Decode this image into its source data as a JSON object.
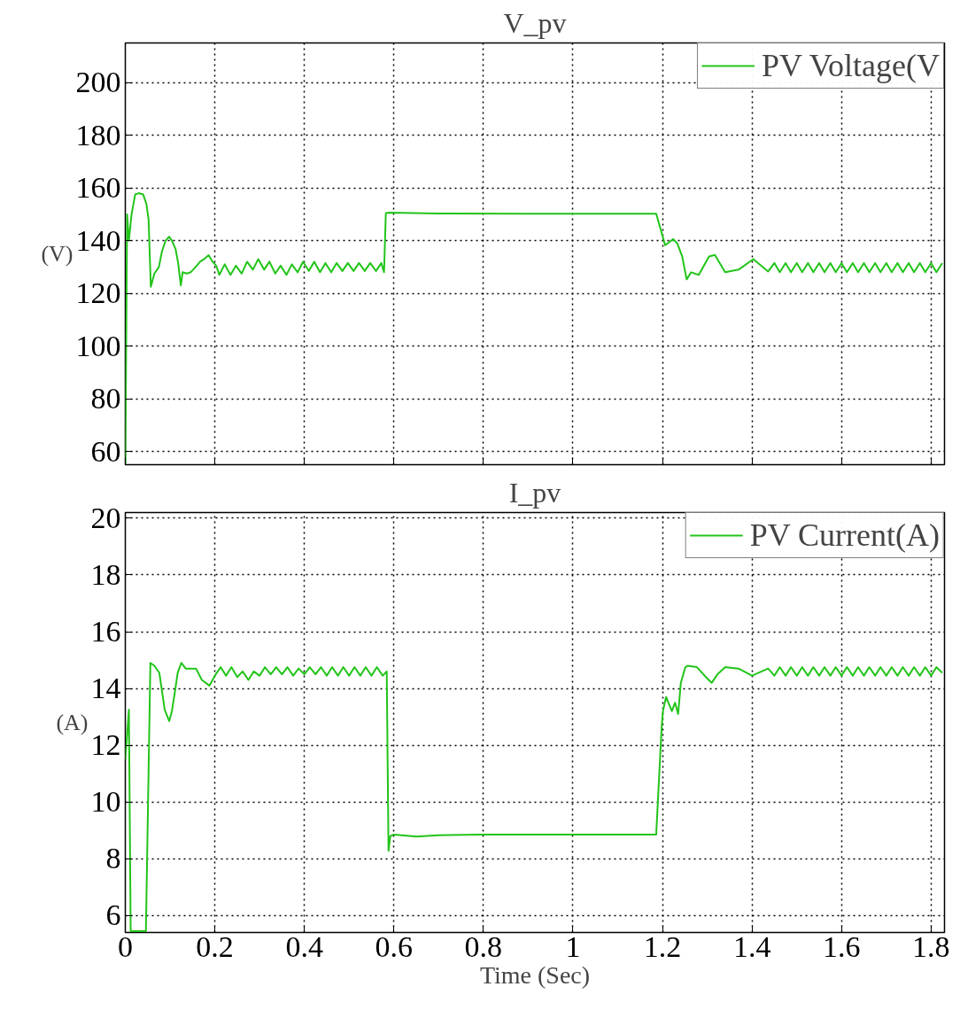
{
  "chart_data": [
    {
      "type": "line",
      "title": "V_pv",
      "ylabel": "(V)",
      "x": [
        0,
        0.004,
        0.008,
        0.014,
        0.022,
        0.03,
        0.04,
        0.047,
        0.052,
        0.057,
        0.065,
        0.075,
        0.082,
        0.09,
        0.098,
        0.104,
        0.112,
        0.118,
        0.124,
        0.128,
        0.137,
        0.146,
        0.157,
        0.167,
        0.176,
        0.186,
        0.195,
        0.203,
        0.21,
        0.222,
        0.235,
        0.247,
        0.26,
        0.272,
        0.285,
        0.297,
        0.31,
        0.322,
        0.335,
        0.347,
        0.36,
        0.372,
        0.385,
        0.397,
        0.41,
        0.422,
        0.435,
        0.447,
        0.46,
        0.472,
        0.485,
        0.497,
        0.51,
        0.522,
        0.535,
        0.547,
        0.56,
        0.572,
        0.578,
        0.582,
        0.59,
        0.7,
        0.9,
        1.1,
        1.186,
        1.206,
        1.224,
        1.233,
        1.244,
        1.254,
        1.264,
        1.281,
        1.304,
        1.317,
        1.34,
        1.37,
        1.403,
        1.436,
        1.45,
        1.462,
        1.475,
        1.487,
        1.5,
        1.512,
        1.525,
        1.537,
        1.55,
        1.562,
        1.575,
        1.587,
        1.6,
        1.612,
        1.625,
        1.637,
        1.65,
        1.662,
        1.675,
        1.687,
        1.7,
        1.712,
        1.725,
        1.737,
        1.75,
        1.762,
        1.775,
        1.787,
        1.8,
        1.812,
        1.825
      ],
      "series": [
        {
          "name": "PV Voltage(V",
          "color": "#22c41a",
          "values": [
            55.2,
            150,
            140,
            150,
            157.5,
            158,
            157.5,
            154,
            148,
            122.5,
            127.5,
            130,
            136,
            140,
            141.5,
            140,
            137,
            131.5,
            123,
            128,
            127.5,
            128,
            130,
            132,
            133,
            134.5,
            132,
            130.5,
            127,
            131,
            127,
            130.5,
            127.5,
            132,
            129,
            133,
            129,
            132,
            127.5,
            130.5,
            127,
            131,
            128,
            132,
            128.5,
            132,
            128,
            131.5,
            128,
            131.5,
            128.5,
            131.5,
            128.5,
            131.5,
            128.5,
            131.5,
            128.5,
            131.5,
            128,
            150.5,
            150.6,
            150.3,
            150.2,
            150.2,
            150.2,
            138.3,
            140.6,
            139,
            134,
            125.3,
            128,
            127,
            134,
            134.6,
            128,
            129,
            133,
            128.3,
            131.5,
            128,
            131.5,
            128,
            131.5,
            128,
            131.5,
            128,
            131.5,
            128,
            131.5,
            128,
            131.5,
            128,
            131.5,
            128,
            131.5,
            128,
            131.5,
            128,
            131.5,
            128,
            131.5,
            128,
            131.5,
            128,
            131.5,
            128,
            131.5,
            128,
            131.5
          ]
        }
      ],
      "xlim": [
        0,
        1.83
      ],
      "ylim": [
        55,
        215
      ],
      "xticks": [
        0,
        0.2,
        0.4,
        0.6,
        0.8,
        1,
        1.2,
        1.4,
        1.6,
        1.8
      ],
      "yticks": [
        60,
        80,
        100,
        120,
        140,
        160,
        180,
        200
      ],
      "grid": true,
      "legend": "top right",
      "tick_labels": "y"
    },
    {
      "type": "line",
      "title": "I_pv",
      "ylabel": "(A)",
      "xlabel": "Time (Sec)",
      "x": [
        0,
        0.008,
        0.012,
        0.036,
        0.046,
        0.056,
        0.065,
        0.076,
        0.082,
        0.088,
        0.098,
        0.104,
        0.11,
        0.117,
        0.125,
        0.135,
        0.158,
        0.171,
        0.188,
        0.2,
        0.213,
        0.225,
        0.237,
        0.25,
        0.262,
        0.275,
        0.287,
        0.3,
        0.312,
        0.325,
        0.337,
        0.35,
        0.362,
        0.375,
        0.387,
        0.4,
        0.412,
        0.425,
        0.437,
        0.45,
        0.462,
        0.475,
        0.487,
        0.5,
        0.512,
        0.525,
        0.537,
        0.55,
        0.562,
        0.575,
        0.584,
        0.588,
        0.592,
        0.6,
        0.65,
        0.7,
        0.8,
        0.9,
        1,
        1.1,
        1.186,
        1.198,
        1.201,
        1.208,
        1.221,
        1.228,
        1.235,
        1.241,
        1.251,
        1.257,
        1.277,
        1.297,
        1.31,
        1.323,
        1.34,
        1.37,
        1.4,
        1.436,
        1.45,
        1.462,
        1.475,
        1.487,
        1.5,
        1.512,
        1.525,
        1.537,
        1.55,
        1.562,
        1.575,
        1.587,
        1.6,
        1.612,
        1.625,
        1.637,
        1.65,
        1.662,
        1.675,
        1.687,
        1.7,
        1.712,
        1.725,
        1.737,
        1.75,
        1.762,
        1.775,
        1.787,
        1.8,
        1.812,
        1.825
      ],
      "series": [
        {
          "name": "PV Current(A)",
          "color": "#22c41a",
          "values": [
            11.5,
            13.25,
            5.45,
            5.45,
            5.45,
            14.9,
            14.8,
            14.55,
            13.9,
            13.25,
            12.85,
            13.2,
            13.8,
            14.55,
            14.9,
            14.7,
            14.7,
            14.3,
            14.1,
            14.45,
            14.75,
            14.45,
            14.75,
            14.4,
            14.6,
            14.3,
            14.6,
            14.45,
            14.75,
            14.5,
            14.75,
            14.5,
            14.75,
            14.45,
            14.7,
            14.5,
            14.75,
            14.5,
            14.75,
            14.45,
            14.75,
            14.45,
            14.75,
            14.45,
            14.75,
            14.45,
            14.75,
            14.45,
            14.75,
            14.45,
            14.6,
            8.28,
            8.8,
            8.85,
            8.78,
            8.83,
            8.85,
            8.85,
            8.85,
            8.85,
            8.85,
            12.6,
            13.2,
            13.7,
            13.2,
            13.5,
            13.1,
            14.2,
            14.75,
            14.8,
            14.75,
            14.4,
            14.2,
            14.5,
            14.75,
            14.7,
            14.45,
            14.7,
            14.45,
            14.75,
            14.45,
            14.75,
            14.45,
            14.75,
            14.45,
            14.75,
            14.45,
            14.75,
            14.45,
            14.75,
            14.45,
            14.75,
            14.45,
            14.75,
            14.45,
            14.75,
            14.45,
            14.75,
            14.45,
            14.75,
            14.45,
            14.75,
            14.45,
            14.75,
            14.45,
            14.75,
            14.45,
            14.75,
            14.55
          ]
        }
      ],
      "xlim": [
        0,
        1.83
      ],
      "ylim": [
        5.4,
        20.2
      ],
      "xticks": [
        0,
        0.2,
        0.4,
        0.6,
        0.8,
        1,
        1.2,
        1.4,
        1.6,
        1.8
      ],
      "yticks": [
        6,
        8,
        10,
        12,
        14,
        16,
        18,
        20
      ],
      "grid": true,
      "legend": "top right"
    }
  ]
}
